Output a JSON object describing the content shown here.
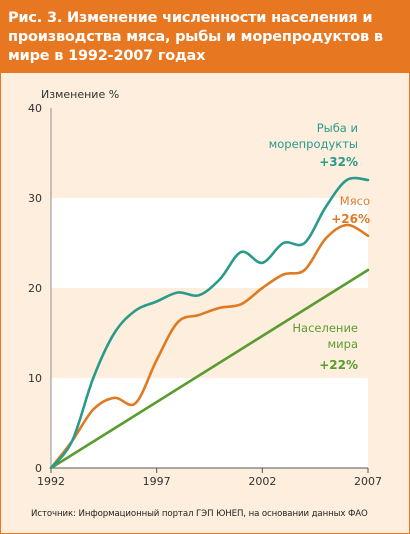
{
  "title": "Рис. 3.  Изменение численности населения и производства мяса, рыбы и морепродуктов в мире в 1992-2007 годах",
  "source": "Источник: Информационный портал ГЭП ЮНЕП, на основании данных ФАО",
  "colors": {
    "header": "#e87722",
    "fish": "#2a9a8c",
    "meat": "#e07a22",
    "population": "#5a9c2e",
    "band": "#fdeedd"
  },
  "chart_data": {
    "type": "line",
    "ylabel": "Изменение %",
    "xlabel": "",
    "xlim": [
      1992,
      2007
    ],
    "ylim": [
      0,
      40
    ],
    "x_ticks": [
      "1992",
      "1997",
      "2002",
      "2007"
    ],
    "y_ticks": [
      "0",
      "10",
      "20",
      "30",
      "40"
    ],
    "grid": "alternating horizontal bands",
    "series": [
      {
        "key": "fish",
        "label_lines": [
          "Рыба и",
          "морепродукты"
        ],
        "value_label": "+32%",
        "x": [
          1992,
          1993,
          1994,
          1995,
          1996,
          1997,
          1998,
          1999,
          2000,
          2001,
          2002,
          2003,
          2004,
          2005,
          2006,
          2007
        ],
        "y": [
          0,
          3,
          10,
          15,
          17.5,
          18.5,
          19.5,
          19.2,
          21,
          24,
          22.8,
          25,
          25,
          29,
          32,
          32
        ]
      },
      {
        "key": "meat",
        "label_lines": [
          "Мясо"
        ],
        "value_label": "+26%",
        "x": [
          1992,
          1993,
          1994,
          1995,
          1996,
          1997,
          1998,
          1999,
          2000,
          2001,
          2002,
          2003,
          2004,
          2005,
          2006,
          2007
        ],
        "y": [
          0,
          3,
          6.5,
          7.8,
          7.2,
          12,
          16.2,
          17,
          17.8,
          18.2,
          20,
          21.5,
          22,
          25.5,
          27,
          25.8
        ]
      },
      {
        "key": "population",
        "label_lines": [
          "Население",
          "мира"
        ],
        "value_label": "+22%",
        "x": [
          1992,
          2007
        ],
        "y": [
          0,
          22
        ]
      }
    ]
  }
}
